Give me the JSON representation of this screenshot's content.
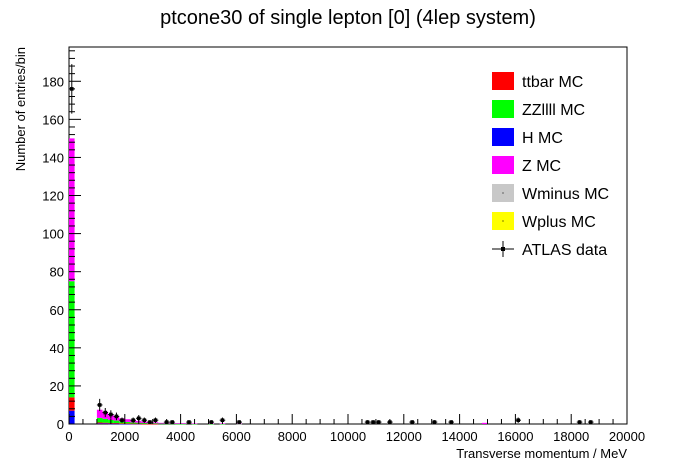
{
  "chart_data": {
    "type": "bar",
    "stacked": true,
    "title": "ptcone30 of single lepton [0] (4lep system)",
    "xlabel": "Transverse momentum / MeV",
    "ylabel": "Number of entries/bin",
    "xlim": [
      0,
      20000
    ],
    "ylim": [
      0,
      198
    ],
    "xticks": [
      0,
      2000,
      4000,
      6000,
      8000,
      10000,
      12000,
      14000,
      16000,
      18000,
      20000
    ],
    "yticks": [
      0,
      20,
      40,
      60,
      80,
      100,
      120,
      140,
      160,
      180
    ],
    "bin_width": 200,
    "legend_position": "top-right",
    "grid": false,
    "stack_bins": [
      {
        "x0": 0,
        "layers": {
          "H MC": 7,
          "ttbar MC": 7,
          "ZZllll MC": 61,
          "Z MC": 75,
          "Wminus MC": 0,
          "Wplus MC": 0
        }
      },
      {
        "x0": 1000,
        "layers": {
          "H MC": 0.3,
          "ttbar MC": 0.5,
          "ZZllll MC": 2.4,
          "Z MC": 4.3,
          "Wminus MC": 0,
          "Wplus MC": 0
        }
      },
      {
        "x0": 1200,
        "layers": {
          "H MC": 0.3,
          "ttbar MC": 0.4,
          "ZZllll MC": 2.0,
          "Z MC": 3.8,
          "Wminus MC": 0,
          "Wplus MC": 0
        }
      },
      {
        "x0": 1400,
        "layers": {
          "H MC": 0.2,
          "ttbar MC": 0.3,
          "ZZllll MC": 1.6,
          "Z MC": 2.9,
          "Wminus MC": 0,
          "Wplus MC": 0
        }
      },
      {
        "x0": 1600,
        "layers": {
          "H MC": 0.2,
          "ttbar MC": 0.3,
          "ZZllll MC": 1.3,
          "Z MC": 2.2,
          "Wminus MC": 0,
          "Wplus MC": 0
        }
      },
      {
        "x0": 1800,
        "layers": {
          "H MC": 0.1,
          "ttbar MC": 0.2,
          "ZZllll MC": 1.0,
          "Z MC": 1.7,
          "Wminus MC": 0,
          "Wplus MC": 0
        }
      },
      {
        "x0": 2000,
        "layers": {
          "H MC": 0.1,
          "ttbar MC": 0.2,
          "ZZllll MC": 0.8,
          "Z MC": 1.4,
          "Wminus MC": 0,
          "Wplus MC": 0
        }
      },
      {
        "x0": 2200,
        "layers": {
          "H MC": 0.1,
          "ttbar MC": 0.1,
          "ZZllll MC": 0.6,
          "Z MC": 1.1,
          "Wminus MC": 0,
          "Wplus MC": 0
        }
      },
      {
        "x0": 2400,
        "layers": {
          "H MC": 0.1,
          "ttbar MC": 0.1,
          "ZZllll MC": 0.5,
          "Z MC": 0.9,
          "Wminus MC": 0,
          "Wplus MC": 0
        }
      },
      {
        "x0": 2600,
        "layers": {
          "H MC": 0,
          "ttbar MC": 0.1,
          "ZZllll MC": 0.4,
          "Z MC": 0.7,
          "Wminus MC": 0,
          "Wplus MC": 0
        }
      },
      {
        "x0": 2800,
        "layers": {
          "H MC": 0,
          "ttbar MC": 0.1,
          "ZZllll MC": 0.3,
          "Z MC": 0.6,
          "Wminus MC": 0,
          "Wplus MC": 0
        }
      },
      {
        "x0": 3000,
        "layers": {
          "H MC": 0,
          "ttbar MC": 0.1,
          "ZZllll MC": 0.3,
          "Z MC": 0.5,
          "Wminus MC": 0,
          "Wplus MC": 0
        }
      },
      {
        "x0": 3200,
        "layers": {
          "H MC": 0,
          "ttbar MC": 0,
          "ZZllll MC": 0.2,
          "Z MC": 0.4,
          "Wminus MC": 0,
          "Wplus MC": 0
        }
      },
      {
        "x0": 3400,
        "layers": {
          "H MC": 0,
          "ttbar MC": 0,
          "ZZllll MC": 0.2,
          "Z MC": 0.4,
          "Wminus MC": 0,
          "Wplus MC": 0
        }
      },
      {
        "x0": 3600,
        "layers": {
          "H MC": 0,
          "ttbar MC": 0,
          "ZZllll MC": 0.2,
          "Z MC": 0.3,
          "Wminus MC": 0,
          "Wplus MC": 0
        }
      },
      {
        "x0": 3800,
        "layers": {
          "H MC": 0,
          "ttbar MC": 0,
          "ZZllll MC": 0.1,
          "Z MC": 0.3,
          "Wminus MC": 0,
          "Wplus MC": 0
        }
      },
      {
        "x0": 4000,
        "layers": {
          "H MC": 0,
          "ttbar MC": 0,
          "ZZllll MC": 0.1,
          "Z MC": 0.3,
          "Wminus MC": 0,
          "Wplus MC": 0
        }
      },
      {
        "x0": 4400,
        "layers": {
          "H MC": 0,
          "ttbar MC": 0,
          "ZZllll MC": 0.1,
          "Z MC": 0.2,
          "Wminus MC": 0,
          "Wplus MC": 0
        }
      },
      {
        "x0": 5000,
        "layers": {
          "H MC": 0,
          "ttbar MC": 0,
          "ZZllll MC": 0.1,
          "Z MC": 0.2,
          "Wminus MC": 0,
          "Wplus MC": 0
        }
      },
      {
        "x0": 5400,
        "layers": {
          "H MC": 0,
          "ttbar MC": 0,
          "ZZllll MC": 0.1,
          "Z MC": 0.2,
          "Wminus MC": 0,
          "Wplus MC": 0
        }
      },
      {
        "x0": 6000,
        "layers": {
          "H MC": 0,
          "ttbar MC": 0,
          "ZZllll MC": 0.1,
          "Z MC": 0.1,
          "Wminus MC": 0,
          "Wplus MC": 0
        }
      },
      {
        "x0": 14800,
        "layers": {
          "H MC": 0,
          "ttbar MC": 0,
          "ZZllll MC": 0,
          "Z MC": 0.6,
          "Wminus MC": 0,
          "Wplus MC": 0
        }
      }
    ],
    "series": [
      {
        "name": "ttbar MC",
        "color": "#ff0000",
        "kind": "stack"
      },
      {
        "name": "ZZllll MC",
        "color": "#00ff00",
        "kind": "stack"
      },
      {
        "name": "H MC",
        "color": "#0000ff",
        "kind": "stack"
      },
      {
        "name": "Z MC",
        "color": "#ff00ff",
        "kind": "stack"
      },
      {
        "name": "Wminus MC",
        "color": "#c8c8c8",
        "kind": "stack"
      },
      {
        "name": "Wplus MC",
        "color": "#ffff00",
        "kind": "stack"
      },
      {
        "name": "ATLAS data",
        "color": "#000000",
        "kind": "points",
        "points": [
          {
            "x": 100,
            "y": 176,
            "err": 13
          },
          {
            "x": 1100,
            "y": 10,
            "err": 3.2
          },
          {
            "x": 1300,
            "y": 6,
            "err": 2.4
          },
          {
            "x": 1500,
            "y": 5,
            "err": 2.2
          },
          {
            "x": 1700,
            "y": 4,
            "err": 2.0
          },
          {
            "x": 1900,
            "y": 2,
            "err": 1.4
          },
          {
            "x": 2300,
            "y": 2,
            "err": 1.4
          },
          {
            "x": 2500,
            "y": 3,
            "err": 1.7
          },
          {
            "x": 2700,
            "y": 2,
            "err": 1.4
          },
          {
            "x": 2900,
            "y": 1,
            "err": 1.0
          },
          {
            "x": 3100,
            "y": 2,
            "err": 1.4
          },
          {
            "x": 3500,
            "y": 1,
            "err": 1.0
          },
          {
            "x": 3700,
            "y": 1,
            "err": 1.0
          },
          {
            "x": 4300,
            "y": 1,
            "err": 1.0
          },
          {
            "x": 5100,
            "y": 1,
            "err": 1.0
          },
          {
            "x": 5500,
            "y": 2,
            "err": 1.4
          },
          {
            "x": 6100,
            "y": 1,
            "err": 1.0
          },
          {
            "x": 10700,
            "y": 1,
            "err": 1.0
          },
          {
            "x": 10900,
            "y": 1,
            "err": 1.0
          },
          {
            "x": 11100,
            "y": 1,
            "err": 1.0
          },
          {
            "x": 11500,
            "y": 1,
            "err": 1.0
          },
          {
            "x": 12300,
            "y": 1,
            "err": 1.0
          },
          {
            "x": 13100,
            "y": 1,
            "err": 1.0
          },
          {
            "x": 13700,
            "y": 1,
            "err": 1.0
          },
          {
            "x": 16100,
            "y": 2,
            "err": 1.4
          },
          {
            "x": 18300,
            "y": 1,
            "err": 1.0
          },
          {
            "x": 18700,
            "y": 1,
            "err": 1.0
          }
        ]
      }
    ]
  }
}
